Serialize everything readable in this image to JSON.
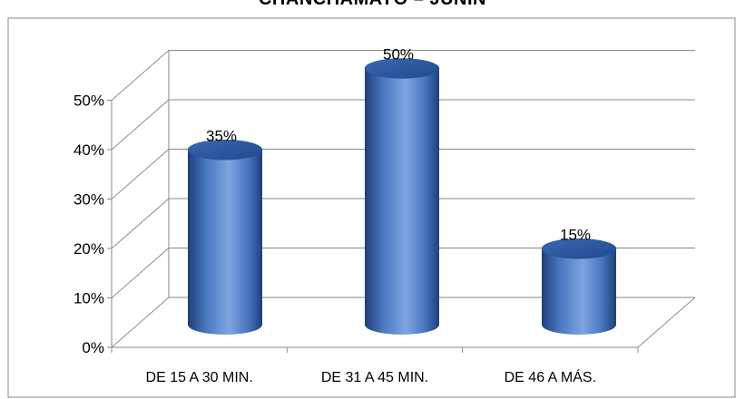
{
  "chart_data": {
    "type": "bar",
    "title": "CHANCHAMAYO – JUNIN",
    "categories": [
      "DE 15 A 30 MIN.",
      "DE 31 A 45 MIN.",
      "DE 46 A MÁS."
    ],
    "values": [
      35,
      50,
      15
    ],
    "value_labels": [
      "35%",
      "50%",
      "15%"
    ],
    "y_ticks": [
      "0%",
      "10%",
      "20%",
      "30%",
      "40%",
      "50%"
    ],
    "ylim": [
      0,
      50
    ],
    "xlabel": "",
    "ylabel": "",
    "grid": true,
    "legend": "none",
    "bar_color": "#4a78c0",
    "bar_dark": "#1f3f7a",
    "bar_light": "#7ea5e0"
  }
}
